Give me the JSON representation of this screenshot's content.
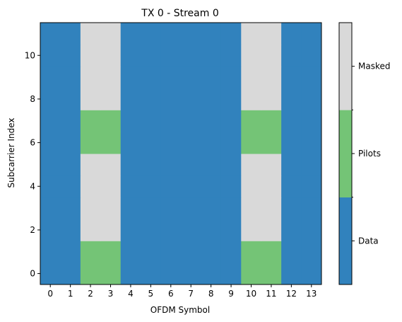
{
  "chart_data": {
    "type": "heatmap",
    "title": "TX 0 - Stream 0",
    "xlabel": "OFDM Symbol",
    "ylabel": "Subcarrier Index",
    "x_ticks": [
      "0",
      "1",
      "2",
      "3",
      "4",
      "5",
      "6",
      "7",
      "8",
      "9",
      "10",
      "11",
      "12",
      "13"
    ],
    "y_ticks": [
      "0",
      "2",
      "4",
      "6",
      "8",
      "10"
    ],
    "xlim": [
      -0.5,
      13.5
    ],
    "ylim": [
      -0.5,
      11.5
    ],
    "categories": [
      {
        "name": "Data",
        "color": "#3182bd"
      },
      {
        "name": "Pilots",
        "color": "#74c476"
      },
      {
        "name": "Masked",
        "color": "#d9d9d9"
      }
    ],
    "grid_rows_subcarrier_0_to_11": [
      [
        0,
        0,
        1,
        1,
        0,
        0,
        0,
        0,
        0,
        0,
        1,
        1,
        0,
        0
      ],
      [
        0,
        0,
        1,
        1,
        0,
        0,
        0,
        0,
        0,
        0,
        1,
        1,
        0,
        0
      ],
      [
        0,
        0,
        2,
        2,
        0,
        0,
        0,
        0,
        0,
        0,
        2,
        2,
        0,
        0
      ],
      [
        0,
        0,
        2,
        2,
        0,
        0,
        0,
        0,
        0,
        0,
        2,
        2,
        0,
        0
      ],
      [
        0,
        0,
        2,
        2,
        0,
        0,
        0,
        0,
        0,
        0,
        2,
        2,
        0,
        0
      ],
      [
        0,
        0,
        2,
        2,
        0,
        0,
        0,
        0,
        0,
        0,
        2,
        2,
        0,
        0
      ],
      [
        0,
        0,
        1,
        1,
        0,
        0,
        0,
        0,
        0,
        0,
        1,
        1,
        0,
        0
      ],
      [
        0,
        0,
        1,
        1,
        0,
        0,
        0,
        0,
        0,
        0,
        1,
        1,
        0,
        0
      ],
      [
        0,
        0,
        2,
        2,
        0,
        0,
        0,
        0,
        0,
        0,
        2,
        2,
        0,
        0
      ],
      [
        0,
        0,
        2,
        2,
        0,
        0,
        0,
        0,
        0,
        0,
        2,
        2,
        0,
        0
      ],
      [
        0,
        0,
        2,
        2,
        0,
        0,
        0,
        0,
        0,
        0,
        2,
        2,
        0,
        0
      ],
      [
        0,
        0,
        2,
        2,
        0,
        0,
        0,
        0,
        0,
        0,
        2,
        2,
        0,
        0
      ]
    ],
    "colorbar_labels": [
      "Data",
      "Pilots",
      "Masked"
    ],
    "grid": false,
    "legend": "colorbar-right"
  }
}
